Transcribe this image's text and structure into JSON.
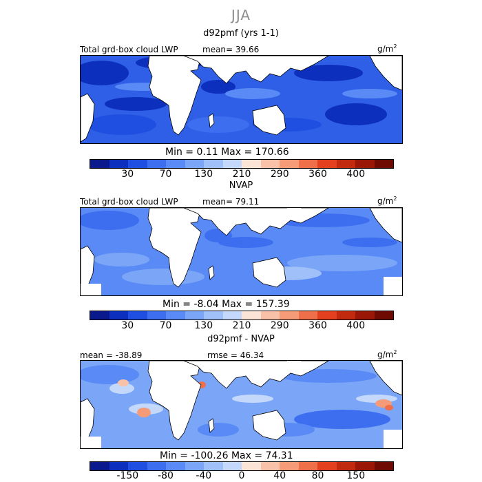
{
  "season": "JJA",
  "panels": [
    {
      "title": "d92pmf (yrs 1-1)",
      "header_left": "Total grd-box cloud LWP",
      "header_mid": "mean=  39.66",
      "units_base": "g/m",
      "units_sup": "2",
      "minmax": "Min =   0.11  Max = 170.66",
      "tick_labels": [
        "30",
        "70",
        "130",
        "210",
        "290",
        "360",
        "400"
      ]
    },
    {
      "title": "NVAP",
      "header_left": "Total grd-box cloud LWP",
      "header_mid": "mean=  79.11",
      "units_base": "g/m",
      "units_sup": "2",
      "minmax": "Min =  -8.04  Max = 157.39",
      "tick_labels": [
        "30",
        "70",
        "130",
        "210",
        "290",
        "360",
        "400"
      ]
    },
    {
      "title": "d92pmf - NVAP",
      "header_left": "mean = -38.89",
      "header_mid": "rmse =  46.34",
      "units_base": "g/m",
      "units_sup": "2",
      "minmax": "Min = -100.26  Max =  74.31",
      "tick_labels": [
        "-150",
        "-80",
        "-40",
        "0",
        "40",
        "80",
        "150"
      ]
    }
  ],
  "colorbar_colors": [
    "#0a1a8c",
    "#0d2fbd",
    "#1f4fe0",
    "#3d6ef0",
    "#5a8af5",
    "#7ba6f7",
    "#9fc0f8",
    "#c3d8fa",
    "#fbe3d6",
    "#f9c2a8",
    "#f59b78",
    "#ee6f49",
    "#e2401f",
    "#c22a0f",
    "#9a1606",
    "#6e0a02"
  ]
}
